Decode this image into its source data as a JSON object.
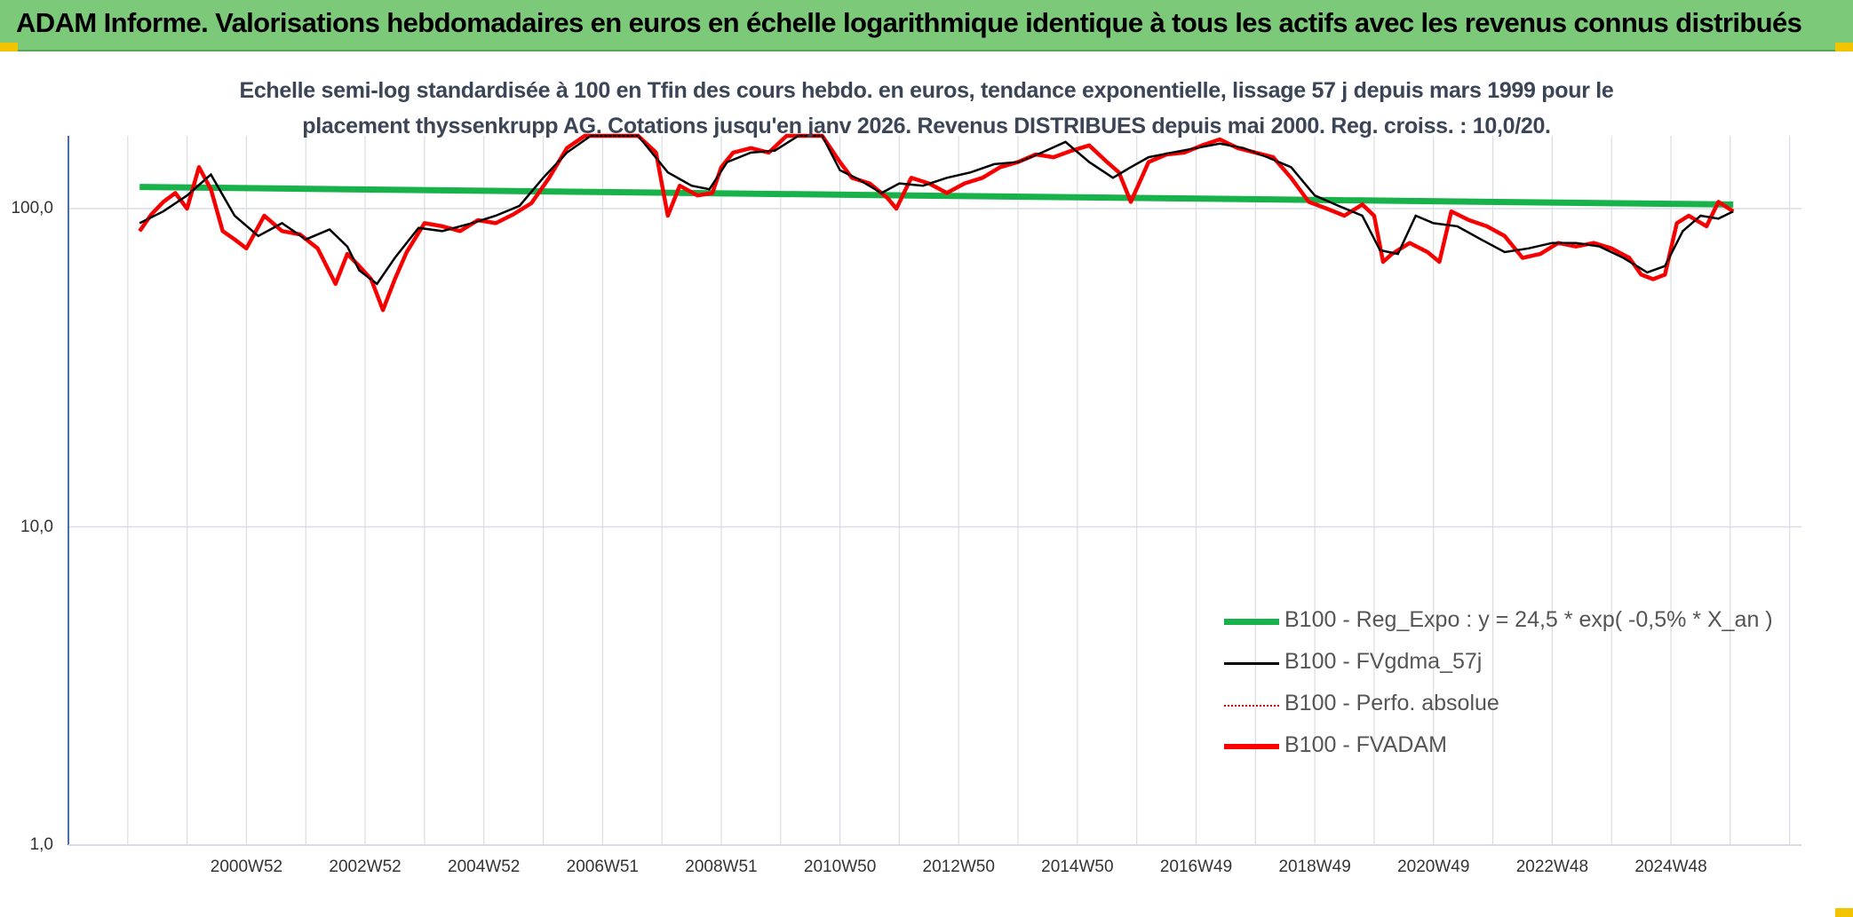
{
  "banner": {
    "title": "ADAM Informe. Valorisations hebdomadaires en euros en échelle logarithmique identique à tous les actifs avec les revenus connus distribués"
  },
  "colors": {
    "banner": "#7dc97a",
    "regression": "#18b24b",
    "smoothed": "#000000",
    "absolute": "#cc0000",
    "fvadam": "#ff0000",
    "grid": "#d9dde3",
    "axis": "#4a6fa5"
  },
  "chart_data": {
    "type": "line",
    "title_lines": [
      "Echelle semi-log standardisée à 100 en Tfin des cours hebdo. en euros, tendance exponentielle, lissage 57 j depuis mars 1999 pour le",
      "placement thyssenkrupp AG. Cotations jusqu'en janv 2026. Revenus DISTRIBUES depuis mai 2000. Reg. croiss. : 10,0/20."
    ],
    "y_scale": "log",
    "ylim": [
      1,
      190
    ],
    "y_ticks": [
      {
        "value": 100,
        "label": "100,0"
      },
      {
        "value": 10,
        "label": "10,0"
      },
      {
        "value": 1,
        "label": "1,0"
      }
    ],
    "xlim": [
      1998.0,
      2027.2
    ],
    "x_tick_labels": [
      {
        "label": "2000W52",
        "x": 2001.0
      },
      {
        "label": "2002W52",
        "x": 2003.0
      },
      {
        "label": "2004W52",
        "x": 2005.0
      },
      {
        "label": "2006W51",
        "x": 2007.0
      },
      {
        "label": "2008W51",
        "x": 2009.0
      },
      {
        "label": "2010W50",
        "x": 2011.0
      },
      {
        "label": "2012W50",
        "x": 2013.0
      },
      {
        "label": "2014W50",
        "x": 2015.0
      },
      {
        "label": "2016W49",
        "x": 2017.0
      },
      {
        "label": "2018W49",
        "x": 2019.0
      },
      {
        "label": "2020W49",
        "x": 2021.0
      },
      {
        "label": "2022W48",
        "x": 2023.0
      },
      {
        "label": "2024W48",
        "x": 2025.0
      }
    ],
    "grid": true,
    "legend_position": "bottom-right",
    "series": [
      {
        "name": "B100 - Reg_Expo : y = 24,5 * exp( -0,5% *  X_an )",
        "style": "thick-green",
        "x": [
          1999.2,
          2026.05
        ],
        "y": [
          117,
          103
        ]
      },
      {
        "name": "B100 - FVgdma_57j",
        "style": "thin-black",
        "x": [
          1999.2,
          1999.6,
          2000.0,
          2000.4,
          2000.8,
          2001.2,
          2001.6,
          2002.0,
          2002.4,
          2002.7,
          2002.9,
          2003.2,
          2003.5,
          2003.9,
          2004.3,
          2004.8,
          2005.2,
          2005.6,
          2006.0,
          2006.4,
          2006.8,
          2007.2,
          2007.6,
          2008.1,
          2008.5,
          2008.8,
          2009.1,
          2009.5,
          2009.9,
          2010.3,
          2010.7,
          2011.0,
          2011.3,
          2011.7,
          2012.0,
          2012.4,
          2012.8,
          2013.2,
          2013.6,
          2014.0,
          2014.4,
          2014.8,
          2015.2,
          2015.6,
          2015.9,
          2016.2,
          2016.6,
          2017.0,
          2017.4,
          2017.8,
          2018.2,
          2018.6,
          2019.0,
          2019.4,
          2019.8,
          2020.1,
          2020.4,
          2020.7,
          2021.0,
          2021.4,
          2021.8,
          2022.2,
          2022.6,
          2023.0,
          2023.4,
          2023.8,
          2024.2,
          2024.6,
          2024.9,
          2025.2,
          2025.5,
          2025.8,
          2026.05
        ],
        "y": [
          90,
          98,
          110,
          128,
          95,
          82,
          90,
          80,
          86,
          76,
          64,
          58,
          70,
          87,
          85,
          90,
          95,
          102,
          125,
          150,
          185,
          192,
          190,
          130,
          118,
          115,
          140,
          150,
          152,
          175,
          180,
          132,
          124,
          112,
          120,
          118,
          125,
          130,
          138,
          140,
          150,
          162,
          140,
          125,
          135,
          145,
          150,
          155,
          160,
          155,
          145,
          135,
          110,
          102,
          95,
          74,
          72,
          95,
          90,
          88,
          80,
          73,
          75,
          78,
          78,
          76,
          70,
          63,
          66,
          85,
          95,
          93,
          98
        ]
      },
      {
        "name": "B100 - Perfo. absolue",
        "style": "dotted-red",
        "x": [
          1999.2,
          1999.4,
          1999.6,
          1999.8,
          2000.0,
          2000.2,
          2000.4,
          2000.6,
          2000.8,
          2001.0,
          2001.3,
          2001.6,
          2001.9,
          2002.2,
          2002.5,
          2002.7,
          2002.9,
          2003.1,
          2003.3,
          2003.5,
          2003.7,
          2004.0,
          2004.3,
          2004.6,
          2004.9,
          2005.2,
          2005.5,
          2005.8,
          2006.1,
          2006.4,
          2006.7,
          2007.0,
          2007.3,
          2007.6,
          2007.9,
          2008.1,
          2008.3,
          2008.6,
          2008.85,
          2009.0,
          2009.2,
          2009.5,
          2009.8,
          2010.1,
          2010.4,
          2010.7,
          2011.0,
          2011.2,
          2011.5,
          2011.8,
          2011.95,
          2012.2,
          2012.5,
          2012.8,
          2013.1,
          2013.4,
          2013.7,
          2014.0,
          2014.3,
          2014.6,
          2014.9,
          2015.2,
          2015.5,
          2015.7,
          2015.9,
          2016.2,
          2016.5,
          2016.8,
          2017.1,
          2017.4,
          2017.7,
          2018.0,
          2018.3,
          2018.6,
          2018.9,
          2019.2,
          2019.5,
          2019.8,
          2020.0,
          2020.15,
          2020.3,
          2020.6,
          2020.9,
          2021.1,
          2021.3,
          2021.6,
          2021.9,
          2022.2,
          2022.5,
          2022.8,
          2023.1,
          2023.4,
          2023.7,
          2024.0,
          2024.3,
          2024.5,
          2024.7,
          2024.9,
          2025.1,
          2025.3,
          2025.6,
          2025.8,
          2026.05
        ],
        "y": [
          85,
          96,
          105,
          112,
          100,
          135,
          115,
          85,
          80,
          75,
          95,
          85,
          83,
          75,
          58,
          72,
          66,
          60,
          48,
          60,
          73,
          90,
          88,
          85,
          92,
          90,
          96,
          104,
          125,
          155,
          178,
          192,
          210,
          190,
          150,
          95,
          118,
          110,
          112,
          135,
          150,
          155,
          150,
          170,
          185,
          205,
          140,
          125,
          120,
          108,
          100,
          125,
          120,
          112,
          120,
          125,
          135,
          140,
          148,
          145,
          152,
          158,
          140,
          130,
          105,
          140,
          148,
          150,
          158,
          165,
          155,
          150,
          145,
          125,
          105,
          100,
          95,
          103,
          95,
          68,
          72,
          78,
          73,
          68,
          98,
          92,
          88,
          82,
          70,
          72,
          78,
          76,
          78,
          75,
          70,
          62,
          60,
          62,
          90,
          95,
          88,
          105,
          98
        ]
      },
      {
        "name": "B100 - FVADAM",
        "style": "thick-red",
        "x": [
          1999.2,
          1999.4,
          1999.6,
          1999.8,
          2000.0,
          2000.2,
          2000.4,
          2000.6,
          2000.8,
          2001.0,
          2001.3,
          2001.6,
          2001.9,
          2002.2,
          2002.5,
          2002.7,
          2002.9,
          2003.1,
          2003.3,
          2003.5,
          2003.7,
          2004.0,
          2004.3,
          2004.6,
          2004.9,
          2005.2,
          2005.5,
          2005.8,
          2006.1,
          2006.4,
          2006.7,
          2007.0,
          2007.3,
          2007.6,
          2007.9,
          2008.1,
          2008.3,
          2008.6,
          2008.85,
          2009.0,
          2009.2,
          2009.5,
          2009.8,
          2010.1,
          2010.4,
          2010.7,
          2011.0,
          2011.2,
          2011.5,
          2011.8,
          2011.95,
          2012.2,
          2012.5,
          2012.8,
          2013.1,
          2013.4,
          2013.7,
          2014.0,
          2014.3,
          2014.6,
          2014.9,
          2015.2,
          2015.5,
          2015.7,
          2015.9,
          2016.2,
          2016.5,
          2016.8,
          2017.1,
          2017.4,
          2017.7,
          2018.0,
          2018.3,
          2018.6,
          2018.9,
          2019.2,
          2019.5,
          2019.8,
          2020.0,
          2020.15,
          2020.3,
          2020.6,
          2020.9,
          2021.1,
          2021.3,
          2021.6,
          2021.9,
          2022.2,
          2022.5,
          2022.8,
          2023.1,
          2023.4,
          2023.7,
          2024.0,
          2024.3,
          2024.5,
          2024.7,
          2024.9,
          2025.1,
          2025.3,
          2025.6,
          2025.8,
          2026.05
        ],
        "y": [
          85,
          96,
          105,
          112,
          100,
          135,
          115,
          85,
          80,
          75,
          95,
          85,
          83,
          75,
          58,
          72,
          66,
          60,
          48,
          60,
          73,
          90,
          88,
          85,
          92,
          90,
          96,
          104,
          125,
          155,
          178,
          192,
          210,
          190,
          150,
          95,
          118,
          110,
          112,
          135,
          150,
          155,
          150,
          170,
          185,
          205,
          140,
          125,
          120,
          108,
          100,
          125,
          120,
          112,
          120,
          125,
          135,
          140,
          148,
          145,
          152,
          158,
          140,
          130,
          105,
          140,
          148,
          150,
          158,
          165,
          155,
          150,
          145,
          125,
          105,
          100,
          95,
          103,
          95,
          68,
          72,
          78,
          73,
          68,
          98,
          92,
          88,
          82,
          70,
          72,
          78,
          76,
          78,
          75,
          70,
          62,
          60,
          62,
          90,
          95,
          88,
          105,
          98
        ]
      }
    ]
  }
}
